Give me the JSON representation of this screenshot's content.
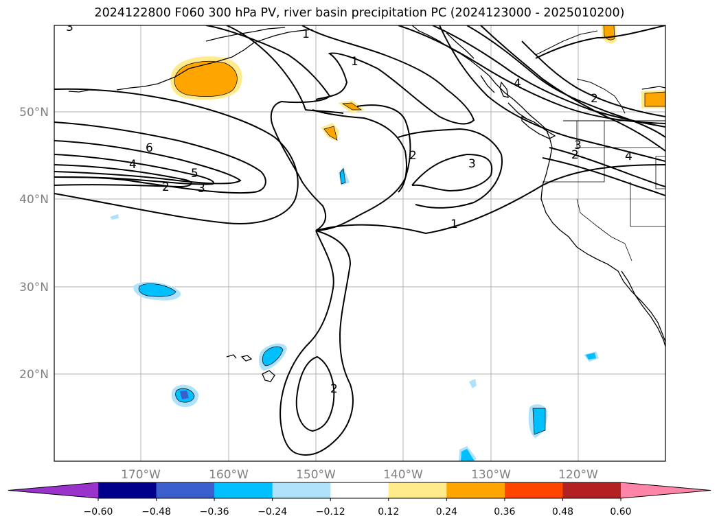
{
  "title": "2024122800 F060 300 hPa PV, river basin precipitation PC (2024123000 - 2025010200)",
  "lat_labels": [
    "50°N",
    "40°N",
    "30°N",
    "20°N"
  ],
  "lon_labels": [
    "170°W",
    "160°W",
    "150°W",
    "140°W",
    "130°W",
    "120°W"
  ],
  "colorbar": {
    "ticks": [
      "−0.60",
      "−0.48",
      "−0.36",
      "−0.24",
      "−0.12",
      "0.12",
      "0.24",
      "0.36",
      "0.48",
      "0.60"
    ],
    "colors": [
      "#9933cc",
      "#00008b",
      "#3a5fcd",
      "#00bfff",
      "#aee2fa",
      "#ffffff",
      "#ffea8c",
      "#ffa500",
      "#ff4500",
      "#b22222",
      "#ff85a8"
    ]
  },
  "contour_labels": [
    "1",
    "1",
    "1",
    "2",
    "2",
    "2",
    "2",
    "3",
    "3",
    "3",
    "4",
    "4",
    "5",
    "6",
    "2",
    "3",
    "4"
  ]
}
